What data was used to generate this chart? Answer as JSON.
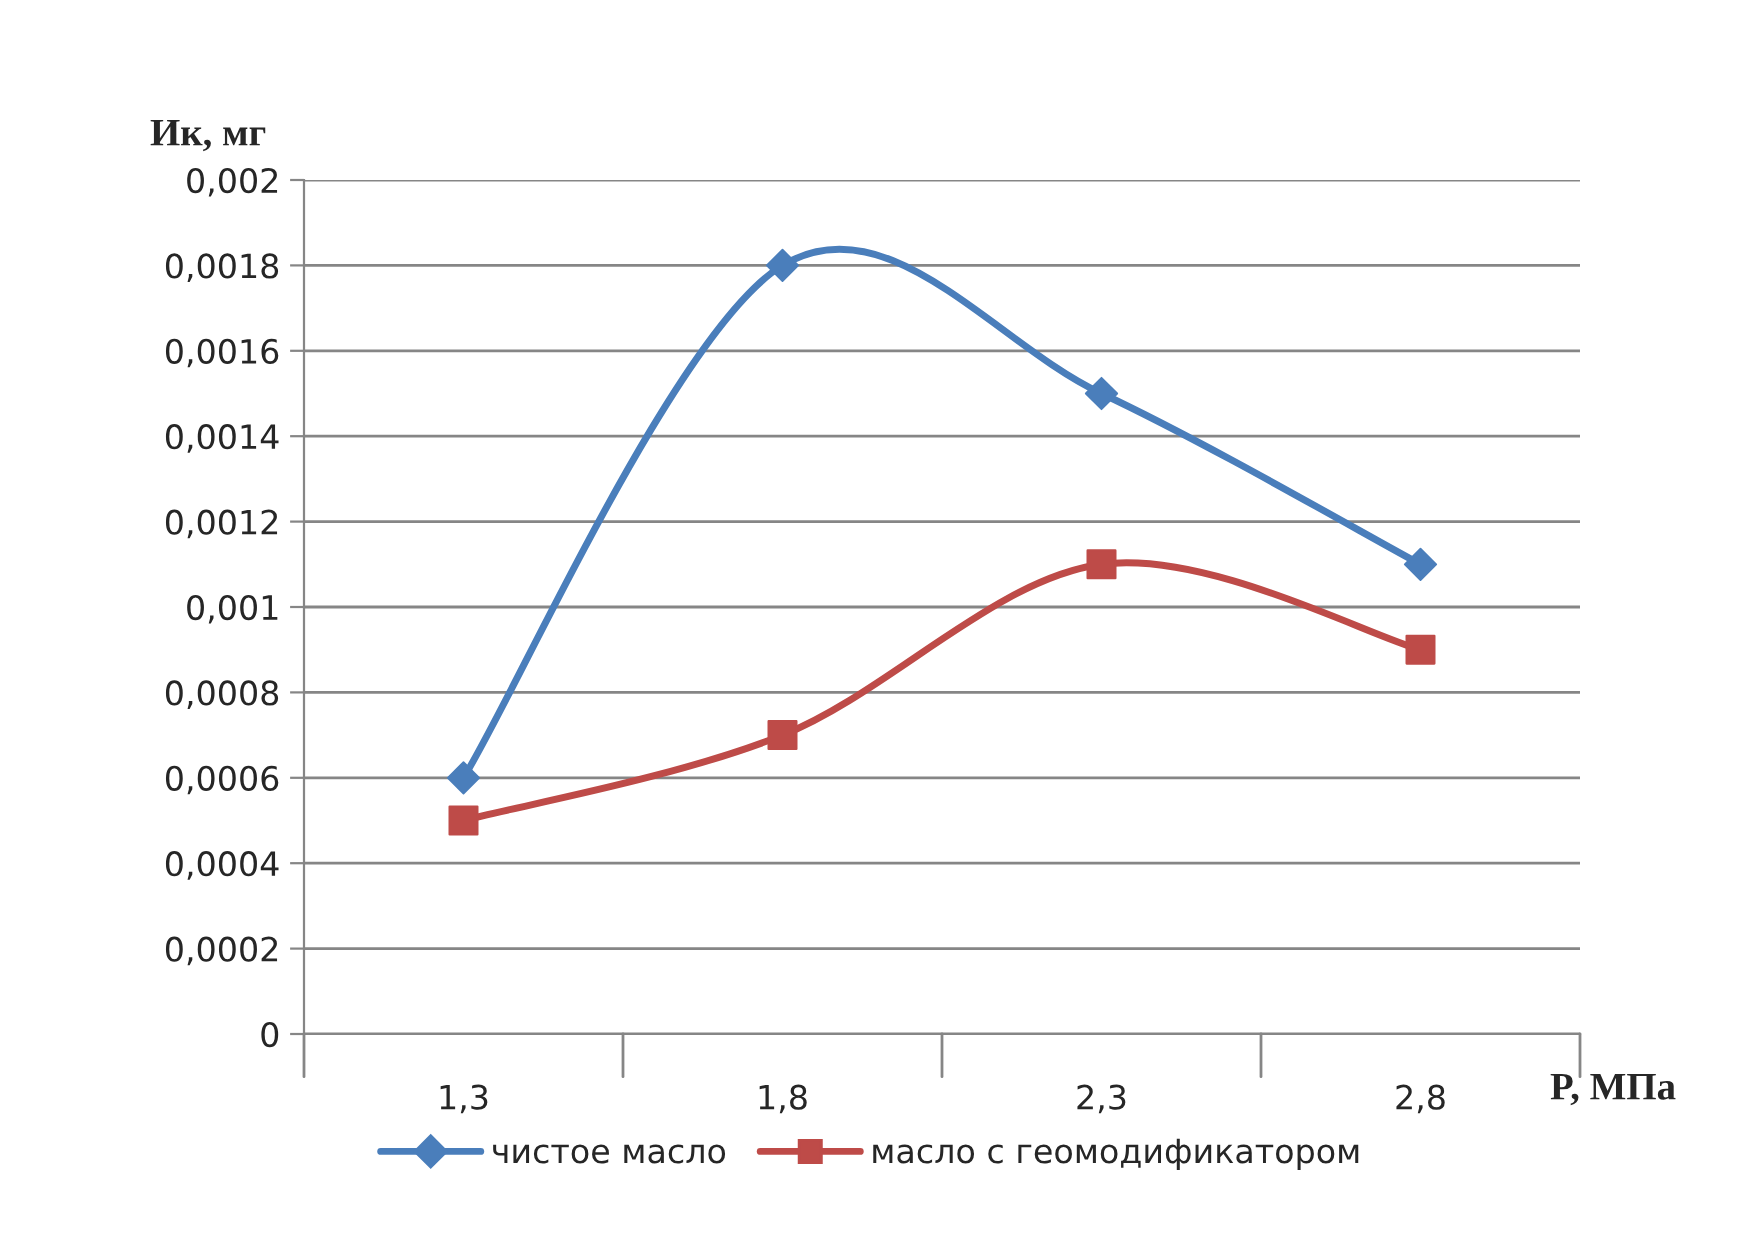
{
  "chart_data": {
    "type": "line",
    "xlabel": "P, МПа",
    "ylabel": "Ик, мг",
    "categories": [
      "1,3",
      "1,8",
      "2,3",
      "2,8"
    ],
    "series": [
      {
        "name": "чистое масло",
        "color": "#4a7ebb",
        "marker": "diamond",
        "values": [
          0.0006,
          0.0018,
          0.0015,
          0.0011
        ]
      },
      {
        "name": "масло с геомодификатором",
        "color": "#be4b48",
        "marker": "square",
        "values": [
          0.0005,
          0.0007,
          0.0011,
          0.0009
        ]
      }
    ],
    "ylim": [
      0,
      0.002
    ],
    "yticks": [
      0,
      {
        "value": 0.0002,
        "label": "0,0002"
      },
      {
        "value": 0.0004,
        "label": "0,0004"
      },
      {
        "value": 0.0006,
        "label": "0,0006"
      },
      {
        "value": 0.0008,
        "label": "0,0008"
      },
      {
        "value": 0.001,
        "label": "0,001"
      },
      {
        "value": 0.0012,
        "label": "0,0012"
      },
      {
        "value": 0.0014,
        "label": "0,0014"
      },
      {
        "value": 0.0016,
        "label": "0,0016"
      },
      {
        "value": 0.0018,
        "label": "0,0018"
      },
      {
        "value": 0.002,
        "label": "0,002"
      }
    ],
    "grid": "y",
    "legend": "bottom",
    "line_style": "solid"
  }
}
